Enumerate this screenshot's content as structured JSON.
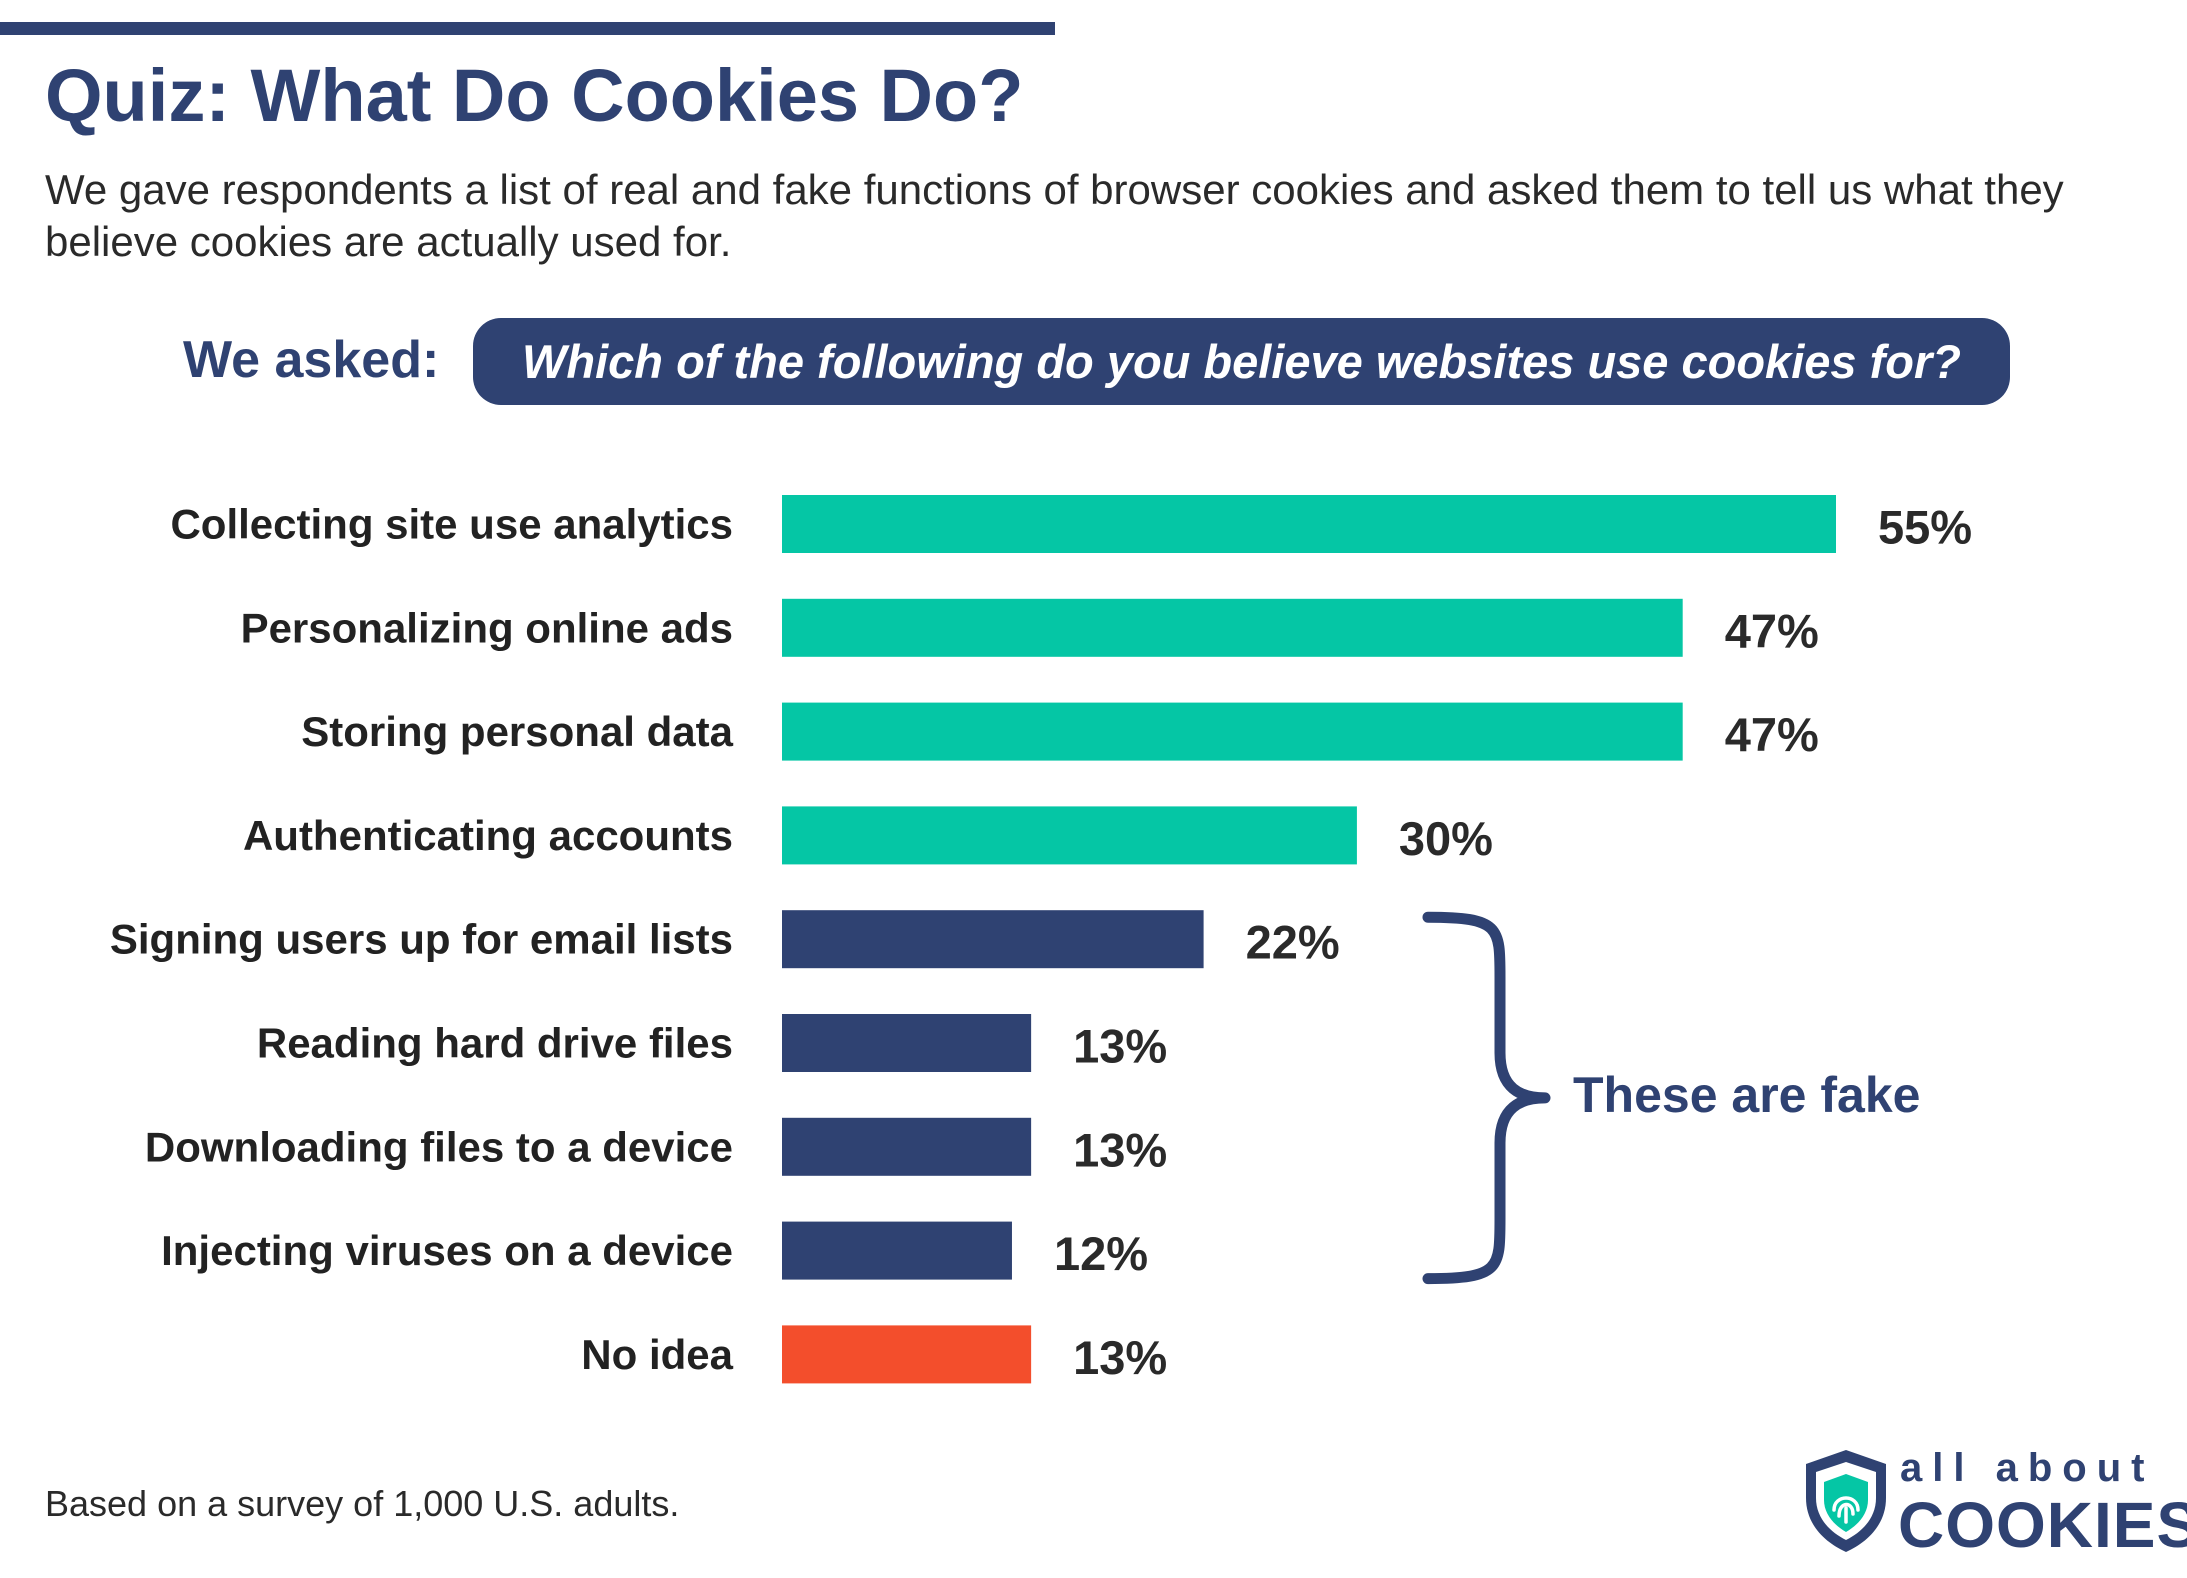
{
  "header": {
    "title": "Quiz: What Do Cookies Do?",
    "subtitle": "We gave respondents a list of real and fake functions of browser cookies and asked them to tell us what they believe cookies are actually used for."
  },
  "question": {
    "label": "We asked:",
    "text": "Which of the following do you believe websites use cookies for?"
  },
  "chart_data": {
    "type": "bar",
    "orientation": "horizontal",
    "categories": [
      "Collecting site use analytics",
      "Personalizing online ads",
      "Storing personal data",
      "Authenticating accounts",
      "Signing users up for email lists",
      "Reading hard drive files",
      "Downloading files to a device",
      "Injecting viruses on a device",
      "No idea"
    ],
    "values": [
      55,
      47,
      47,
      30,
      22,
      13,
      13,
      12,
      13
    ],
    "value_labels": [
      "55%",
      "47%",
      "47%",
      "30%",
      "22%",
      "13%",
      "13%",
      "12%",
      "13%"
    ],
    "groups": [
      "real",
      "real",
      "real",
      "real",
      "fake",
      "fake",
      "fake",
      "fake",
      "unsure"
    ],
    "colors": {
      "real": "#05c6a5",
      "fake": "#2f4272",
      "unsure": "#f34e2c"
    },
    "unit": "%",
    "xlim": [
      0,
      55
    ],
    "grid": false,
    "annotation": "These are fake"
  },
  "footnote": "Based on a survey of 1,000 U.S. adults.",
  "brand": {
    "line1": "all about",
    "line2": "COOKIES",
    "color": "#2f4272",
    "accent": "#05c6a5"
  }
}
